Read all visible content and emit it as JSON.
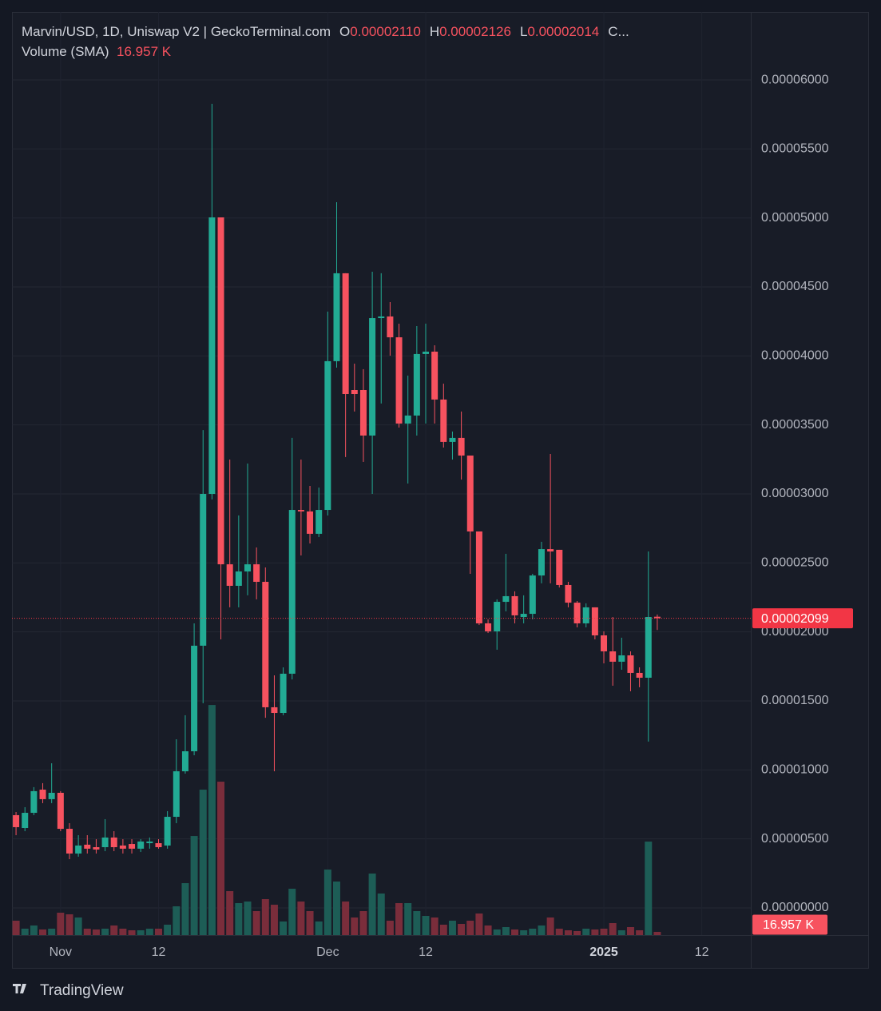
{
  "chart_data": {
    "type": "candlestick",
    "header": {
      "title": "Marvin/USD, 1D, Uniswap V2 | GeckoTerminal.com",
      "ohlc": [
        {
          "key": "O",
          "value": "0.00002110"
        },
        {
          "key": "H",
          "value": "0.00002126"
        },
        {
          "key": "L",
          "value": "0.00002014"
        },
        {
          "key": "C..."
        }
      ],
      "volume_label": "Volume (SMA)"
    },
    "volume_sma": {
      "value": 16957,
      "label": "16.957 K"
    },
    "last_price": {
      "value": 2.099e-05,
      "label": "0.00002099"
    },
    "brand": "TradingView",
    "up_color": "#22ab94",
    "down_color": "#f7525f",
    "volume_up_color": "#1d5d56",
    "volume_down_color": "#7a2d3b",
    "last_price_color": "#f23645",
    "grid": true,
    "categories": [
      null,
      null,
      null,
      null,
      null,
      "Nov",
      null,
      null,
      null,
      null,
      null,
      null,
      null,
      null,
      null,
      null,
      "12",
      null,
      null,
      null,
      null,
      null,
      null,
      null,
      null,
      null,
      null,
      null,
      null,
      null,
      null,
      null,
      null,
      null,
      null,
      "Dec",
      null,
      null,
      null,
      null,
      null,
      null,
      null,
      null,
      null,
      null,
      "12",
      null,
      null,
      null,
      null,
      null,
      null,
      null,
      null,
      null,
      null,
      null,
      null,
      null,
      null,
      null,
      null,
      null,
      null,
      null,
      "2025",
      null,
      null,
      null,
      null,
      null,
      null,
      null,
      null,
      null,
      null,
      "12",
      null,
      null,
      null,
      null,
      null
    ],
    "open": [
      6.72e-06,
      5.79e-06,
      6.89e-06,
      8.57e-06,
      7.88e-06,
      8.34e-06,
      5.73e-06,
      3.94e-06,
      4.58e-06,
      4.4e-06,
      4.4e-06,
      5.1e-06,
      4.52e-06,
      4.63e-06,
      4.29e-06,
      4.69e-06,
      4.69e-06,
      4.52e-06,
      6.6e-06,
      9.9e-06,
      1.135e-05,
      1.9e-05,
      3e-05,
      5.004e-05,
      2.49e-05,
      2.334e-05,
      2.438e-05,
      2.49e-05,
      2.363e-05,
      1.454e-05,
      1.413e-05,
      1.697e-05,
      2.884e-05,
      2.873e-05,
      2.711e-05,
      2.884e-05,
      3.962e-05,
      4.599e-05,
      3.753e-05,
      3.753e-05,
      3.423e-05,
      4.274e-05,
      4.286e-05,
      4.135e-05,
      3.51e-05,
      3.568e-05,
      4.014e-05,
      4.031e-05,
      3.684e-05,
      3.377e-05,
      3.406e-05,
      3.278e-05,
      2.728e-05,
      2.062e-05,
      2.004e-05,
      2.218e-05,
      2.259e-05,
      2.108e-05,
      2.131e-05,
      2.409e-05,
      2.6e-05,
      2.595e-05,
      2.34e-05,
      2.212e-05,
      2.062e-05,
      2.178e-05,
      1.975e-05,
      1.859e-05,
      1.784e-05,
      1.83e-05,
      1.703e-05,
      1.668e-05,
      2.11e-05,
      null,
      null,
      null,
      null,
      null,
      null,
      null,
      null,
      null,
      null
    ],
    "high": [
      6.95e-06,
      7.3e-06,
      8.75e-06,
      9.04e-06,
      1.048e-05,
      8.46e-06,
      6.14e-06,
      5.27e-06,
      5.27e-06,
      4.98e-06,
      6.43e-06,
      5.56e-06,
      4.98e-06,
      4.98e-06,
      4.98e-06,
      5.1e-06,
      4.98e-06,
      7.01e-06,
      1.222e-05,
      1.396e-05,
      2.062e-05,
      3.463e-05,
      5.827e-05,
      5.004e-05,
      3.249e-05,
      2.844e-05,
      3.22e-05,
      2.612e-05,
      2.467e-05,
      1.685e-05,
      1.743e-05,
      3.406e-05,
      3.249e-05,
      3.058e-05,
      3.046e-05,
      4.321e-05,
      5.114e-05,
      4.599e-05,
      3.944e-05,
      3.904e-05,
      4.61e-05,
      4.599e-05,
      4.39e-05,
      4.234e-05,
      3.857e-05,
      4.216e-05,
      4.234e-05,
      4.077e-05,
      3.799e-05,
      3.452e-05,
      3.597e-05,
      3.278e-05,
      2.728e-05,
      2.091e-05,
      2.236e-05,
      2.566e-05,
      2.294e-05,
      2.265e-05,
      2.421e-05,
      2.653e-05,
      3.29e-05,
      2.595e-05,
      2.363e-05,
      2.224e-05,
      2.207e-05,
      2.178e-05,
      2.004e-05,
      2.108e-05,
      1.958e-05,
      1.859e-05,
      1.743e-05,
      2.583e-05,
      2.126e-05,
      null,
      null,
      null,
      null,
      null,
      null,
      null,
      null,
      null,
      null
    ],
    "low": [
      5.27e-06,
      5.56e-06,
      6.72e-06,
      7.59e-06,
      7.59e-06,
      5.56e-06,
      3.53e-06,
      3.71e-06,
      3.94e-06,
      3.94e-06,
      4.11e-06,
      4.11e-06,
      3.94e-06,
      3.94e-06,
      4.05e-06,
      4.29e-06,
      4.29e-06,
      4.29e-06,
      6.14e-06,
      9.73e-06,
      1.106e-05,
      1.483e-05,
      2.96e-05,
      1.946e-05,
      2.178e-05,
      2.178e-05,
      2.265e-05,
      2.236e-05,
      1.378e-05,
      9.9e-06,
      1.396e-05,
      1.656e-05,
      2.554e-05,
      2.641e-05,
      2.687e-05,
      2.844e-05,
      3.915e-05,
      3.267e-05,
      3.597e-05,
      3.232e-05,
      3e-05,
      3.655e-05,
      4.002e-05,
      3.481e-05,
      3.075e-05,
      3.423e-05,
      3.51e-05,
      3.51e-05,
      3.336e-05,
      3.249e-05,
      3.104e-05,
      2.421e-05,
      2.05e-05,
      1.992e-05,
      1.871e-05,
      2.149e-05,
      2.062e-05,
      2.062e-05,
      2.091e-05,
      2.352e-05,
      2.352e-05,
      2.322e-05,
      2.178e-05,
      2.033e-05,
      2.033e-05,
      1.946e-05,
      1.772e-05,
      1.61e-05,
      1.726e-05,
      1.57e-05,
      1.599e-05,
      1.205e-05,
      2.014e-05,
      null,
      null,
      null,
      null,
      null,
      null,
      null,
      null,
      null,
      null
    ],
    "close": [
      5.85e-06,
      6.89e-06,
      8.46e-06,
      7.88e-06,
      8.34e-06,
      5.73e-06,
      3.94e-06,
      4.52e-06,
      4.29e-06,
      4.23e-06,
      5.1e-06,
      4.4e-06,
      4.29e-06,
      4.29e-06,
      4.81e-06,
      4.81e-06,
      4.4e-06,
      6.6e-06,
      9.9e-06,
      1.135e-05,
      1.9e-05,
      3e-05,
      5.004e-05,
      2.49e-05,
      2.334e-05,
      2.438e-05,
      2.49e-05,
      2.363e-05,
      1.454e-05,
      1.413e-05,
      1.697e-05,
      2.884e-05,
      2.873e-05,
      2.711e-05,
      2.884e-05,
      3.962e-05,
      4.599e-05,
      3.724e-05,
      3.724e-05,
      3.423e-05,
      4.274e-05,
      4.286e-05,
      4.135e-05,
      3.51e-05,
      3.568e-05,
      4.014e-05,
      4.031e-05,
      3.684e-05,
      3.377e-05,
      3.406e-05,
      3.278e-05,
      2.728e-05,
      2.062e-05,
      2.004e-05,
      2.218e-05,
      2.259e-05,
      2.12e-05,
      2.131e-05,
      2.409e-05,
      2.6e-05,
      2.583e-05,
      2.34e-05,
      2.212e-05,
      2.062e-05,
      2.178e-05,
      1.975e-05,
      1.859e-05,
      1.784e-05,
      1.83e-05,
      1.703e-05,
      1.668e-05,
      2.108e-05,
      2.099e-05,
      null,
      null,
      null,
      null,
      null,
      null,
      null,
      null,
      null,
      null
    ],
    "volume": [
      23400,
      10400,
      15600,
      9100,
      10400,
      36400,
      33800,
      28600,
      10400,
      9100,
      10400,
      15600,
      10400,
      7800,
      7800,
      10400,
      10400,
      16900,
      46800,
      84500,
      161200,
      236600,
      374400,
      249600,
      71500,
      52000,
      54600,
      39000,
      58500,
      49400,
      22100,
      75400,
      54600,
      39000,
      22100,
      106600,
      87100,
      54600,
      28600,
      39000,
      100100,
      67600,
      23400,
      52000,
      52000,
      39000,
      31200,
      28600,
      16900,
      23400,
      18200,
      23400,
      35100,
      15600,
      9100,
      13000,
      9100,
      7800,
      10400,
      15600,
      28600,
      10400,
      7800,
      6500,
      10400,
      9100,
      10400,
      19500,
      7800,
      13000,
      7800,
      152100,
      5200,
      null,
      null,
      null,
      null,
      null,
      null,
      null,
      null,
      null,
      null
    ],
    "ylim": [
      -1.97e-06,
      6.4925e-05
    ],
    "volume_ylim": [
      0,
      1000000
    ],
    "yticks": [
      {
        "value": 0,
        "label": "0.00000000"
      },
      {
        "value": 5e-06,
        "label": "0.00000500"
      },
      {
        "value": 1e-05,
        "label": "0.00001000"
      },
      {
        "value": 1.5e-05,
        "label": "0.00001500"
      },
      {
        "value": 2e-05,
        "label": "0.00002000"
      },
      {
        "value": 2.5e-05,
        "label": "0.00002500"
      },
      {
        "value": 3e-05,
        "label": "0.00003000"
      },
      {
        "value": 3.5e-05,
        "label": "0.00003500"
      },
      {
        "value": 4e-05,
        "label": "0.00004000"
      },
      {
        "value": 4.5e-05,
        "label": "0.00004500"
      },
      {
        "value": 5e-05,
        "label": "0.00005000"
      },
      {
        "value": 5.5e-05,
        "label": "0.00005500"
      },
      {
        "value": 6e-05,
        "label": "0.00006000"
      }
    ]
  }
}
